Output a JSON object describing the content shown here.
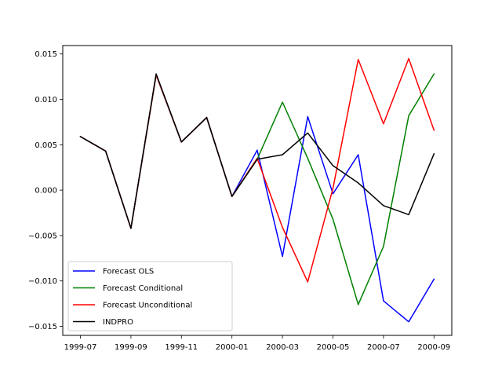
{
  "chart_data": {
    "type": "line",
    "x": [
      "1999-07",
      "1999-08",
      "1999-09",
      "1999-10",
      "1999-11",
      "1999-12",
      "2000-01",
      "2000-02",
      "2000-03",
      "2000-04",
      "2000-05",
      "2000-06",
      "2000-07",
      "2000-08",
      "2000-09"
    ],
    "xtick_labels": [
      "1999-07",
      "1999-09",
      "1999-11",
      "2000-01",
      "2000-03",
      "2000-05",
      "2000-07",
      "2000-09"
    ],
    "ytick_values": [
      -0.015,
      -0.01,
      -0.005,
      0.0,
      0.005,
      0.01,
      0.015
    ],
    "ytick_labels": [
      "−0.015",
      "−0.010",
      "−0.005",
      "0.000",
      "0.005",
      "0.010",
      "0.015"
    ],
    "ylim": [
      -0.0159,
      0.0159
    ],
    "xlabel": "",
    "ylabel": "",
    "title": "",
    "grid": false,
    "legend_placement": "lower-left",
    "series": [
      {
        "name": "Forecast OLS",
        "color": "#0000ff",
        "values": [
          0.0059,
          0.0043,
          -0.0042,
          0.0127,
          0.0053,
          0.008,
          -0.0007,
          0.0044,
          -0.0073,
          0.0081,
          -0.0004,
          0.0039,
          -0.0122,
          -0.0145,
          -0.0098
        ]
      },
      {
        "name": "Forecast Conditional",
        "color": "#008000",
        "values": [
          0.0059,
          0.0043,
          -0.0042,
          0.0127,
          0.0053,
          0.008,
          -0.0007,
          0.0034,
          0.0097,
          0.0035,
          -0.0032,
          -0.0126,
          -0.0062,
          0.0082,
          0.0128
        ]
      },
      {
        "name": "Forecast Unconditional",
        "color": "#ff0000",
        "values": [
          0.0059,
          0.0043,
          -0.0042,
          0.0127,
          0.0053,
          0.008,
          -0.0007,
          0.0035,
          -0.0041,
          -0.0101,
          0.0002,
          0.0144,
          0.0073,
          0.0145,
          0.0066
        ]
      },
      {
        "name": "INDPRO",
        "color": "#000000",
        "values": [
          0.0059,
          0.0043,
          -0.0042,
          0.0128,
          0.0053,
          0.008,
          -0.0007,
          0.0034,
          0.0039,
          0.0063,
          0.0027,
          0.0008,
          -0.0017,
          -0.0027,
          0.004
        ]
      }
    ]
  }
}
